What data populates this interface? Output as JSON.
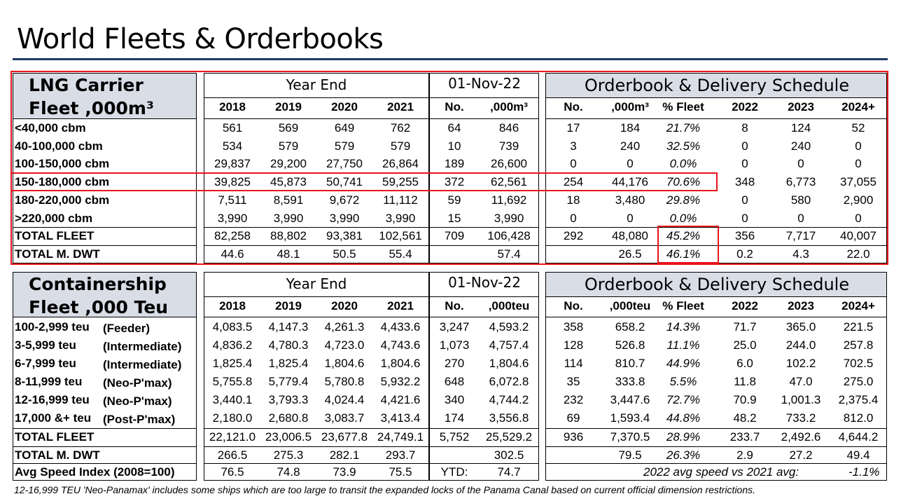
{
  "page_title": "World Fleets & Orderbooks",
  "lng": {
    "title_line1": "LNG Carrier",
    "title_line2": "Fleet ,000m³",
    "year_end_label": "Year End",
    "date_label": "01-Nov-22",
    "orderbook_label": "Orderbook & Delivery Schedule",
    "col_headers": [
      "2018",
      "2019",
      "2020",
      "2021",
      "No.",
      ",000m³",
      "No.",
      ",000m³",
      "% Fleet",
      "2022",
      "2023",
      "2024+"
    ],
    "rows": [
      {
        "label": "<40,000 cbm",
        "values": [
          "561",
          "569",
          "649",
          "762",
          "64",
          "846",
          "17",
          "184",
          "21.7%",
          "8",
          "124",
          "52"
        ]
      },
      {
        "label": "40-100,000 cbm",
        "values": [
          "534",
          "579",
          "579",
          "579",
          "10",
          "739",
          "3",
          "240",
          "32.5%",
          "0",
          "240",
          "0"
        ]
      },
      {
        "label": "100-150,000 cbm",
        "values": [
          "29,837",
          "29,200",
          "27,750",
          "26,864",
          "189",
          "26,600",
          "0",
          "0",
          "0.0%",
          "0",
          "0",
          "0"
        ]
      },
      {
        "label": "150-180,000 cbm",
        "values": [
          "39,825",
          "45,873",
          "50,741",
          "59,255",
          "372",
          "62,561",
          "254",
          "44,176",
          "70.6%",
          "348",
          "6,773",
          "37,055"
        ]
      },
      {
        "label": "180-220,000 cbm",
        "values": [
          "7,511",
          "8,591",
          "9,672",
          "11,112",
          "59",
          "11,692",
          "18",
          "3,480",
          "29.8%",
          "0",
          "580",
          "2,900"
        ]
      },
      {
        "label": ">220,000 cbm",
        "values": [
          "3,990",
          "3,990",
          "3,990",
          "3,990",
          "15",
          "3,990",
          "0",
          "0",
          "0.0%",
          "0",
          "0",
          "0"
        ]
      }
    ],
    "total_fleet": {
      "label": "TOTAL FLEET",
      "values": [
        "82,258",
        "88,802",
        "93,381",
        "102,561",
        "709",
        "106,428",
        "292",
        "48,080",
        "45.2%",
        "356",
        "7,717",
        "40,007"
      ]
    },
    "total_dwt": {
      "label": "TOTAL M. DWT",
      "values": [
        "44.6",
        "48.1",
        "50.5",
        "55.4",
        "",
        "57.4",
        "",
        "26.5",
        "46.1%",
        "0.2",
        "4.3",
        "22.0"
      ]
    }
  },
  "container": {
    "title_line1": "Containership",
    "title_line2": "Fleet ,000 Teu",
    "year_end_label": "Year End",
    "date_label": "01-Nov-22",
    "orderbook_label": "Orderbook & Delivery Schedule",
    "col_headers": [
      "2018",
      "2019",
      "2020",
      "2021",
      "No.",
      ",000teu",
      "No.",
      ",000teu",
      "% Fleet",
      "2022",
      "2023",
      "2024+"
    ],
    "rows": [
      {
        "label": "100-2,999 teu",
        "sub": "(Feeder)",
        "values": [
          "4,083.5",
          "4,147.3",
          "4,261.3",
          "4,433.6",
          "3,247",
          "4,593.2",
          "358",
          "658.2",
          "14.3%",
          "71.7",
          "365.0",
          "221.5"
        ]
      },
      {
        "label": "3-5,999 teu",
        "sub": "(Intermediate)",
        "values": [
          "4,836.2",
          "4,780.3",
          "4,723.0",
          "4,743.6",
          "1,073",
          "4,757.4",
          "128",
          "526.8",
          "11.1%",
          "25.0",
          "244.0",
          "257.8"
        ]
      },
      {
        "label": "6-7,999 teu",
        "sub": "(Intermediate)",
        "values": [
          "1,825.4",
          "1,825.4",
          "1,804.6",
          "1,804.6",
          "270",
          "1,804.6",
          "114",
          "810.7",
          "44.9%",
          "6.0",
          "102.2",
          "702.5"
        ]
      },
      {
        "label": "8-11,999 teu",
        "sub": "(Neo-P'max)",
        "values": [
          "5,755.8",
          "5,779.4",
          "5,780.8",
          "5,932.2",
          "648",
          "6,072.8",
          "35",
          "333.8",
          "5.5%",
          "11.8",
          "47.0",
          "275.0"
        ]
      },
      {
        "label": "12-16,999 teu",
        "sub": "(Neo-P'max)",
        "values": [
          "3,440.1",
          "3,793.3",
          "4,024.4",
          "4,421.6",
          "340",
          "4,744.2",
          "232",
          "3,447.6",
          "72.7%",
          "70.9",
          "1,001.3",
          "2,375.4"
        ]
      },
      {
        "label": "17,000 &+ teu",
        "sub": "(Post-P'max)",
        "values": [
          "2,180.0",
          "2,680.8",
          "3,083.7",
          "3,413.4",
          "174",
          "3,556.8",
          "69",
          "1,593.4",
          "44.8%",
          "48.2",
          "733.2",
          "812.0"
        ]
      }
    ],
    "total_fleet": {
      "label": "TOTAL FLEET",
      "values": [
        "22,121.0",
        "23,006.5",
        "23,677.8",
        "24,749.1",
        "5,752",
        "25,529.2",
        "936",
        "7,370.5",
        "28.9%",
        "233.7",
        "2,492.6",
        "4,644.2"
      ]
    },
    "total_dwt": {
      "label": "TOTAL M. DWT",
      "values": [
        "266.5",
        "275.3",
        "282.1",
        "293.7",
        "",
        "302.5",
        "",
        "79.5",
        "26.3%",
        "2.9",
        "27.2",
        "49.4"
      ]
    },
    "speed": {
      "label": "Avg Speed Index (2008=100)",
      "values": [
        "76.5",
        "74.8",
        "73.9",
        "75.5",
        "YTD:",
        "74.7"
      ],
      "note": "2022 avg speed vs 2021 avg:",
      "note_value": "-1.1%"
    }
  },
  "footnote": "12-16,999 TEU 'Neo-Panamax' includes some ships which are too large to transit the expanded locks of the Panama Canal based on current official dimension restrictions."
}
